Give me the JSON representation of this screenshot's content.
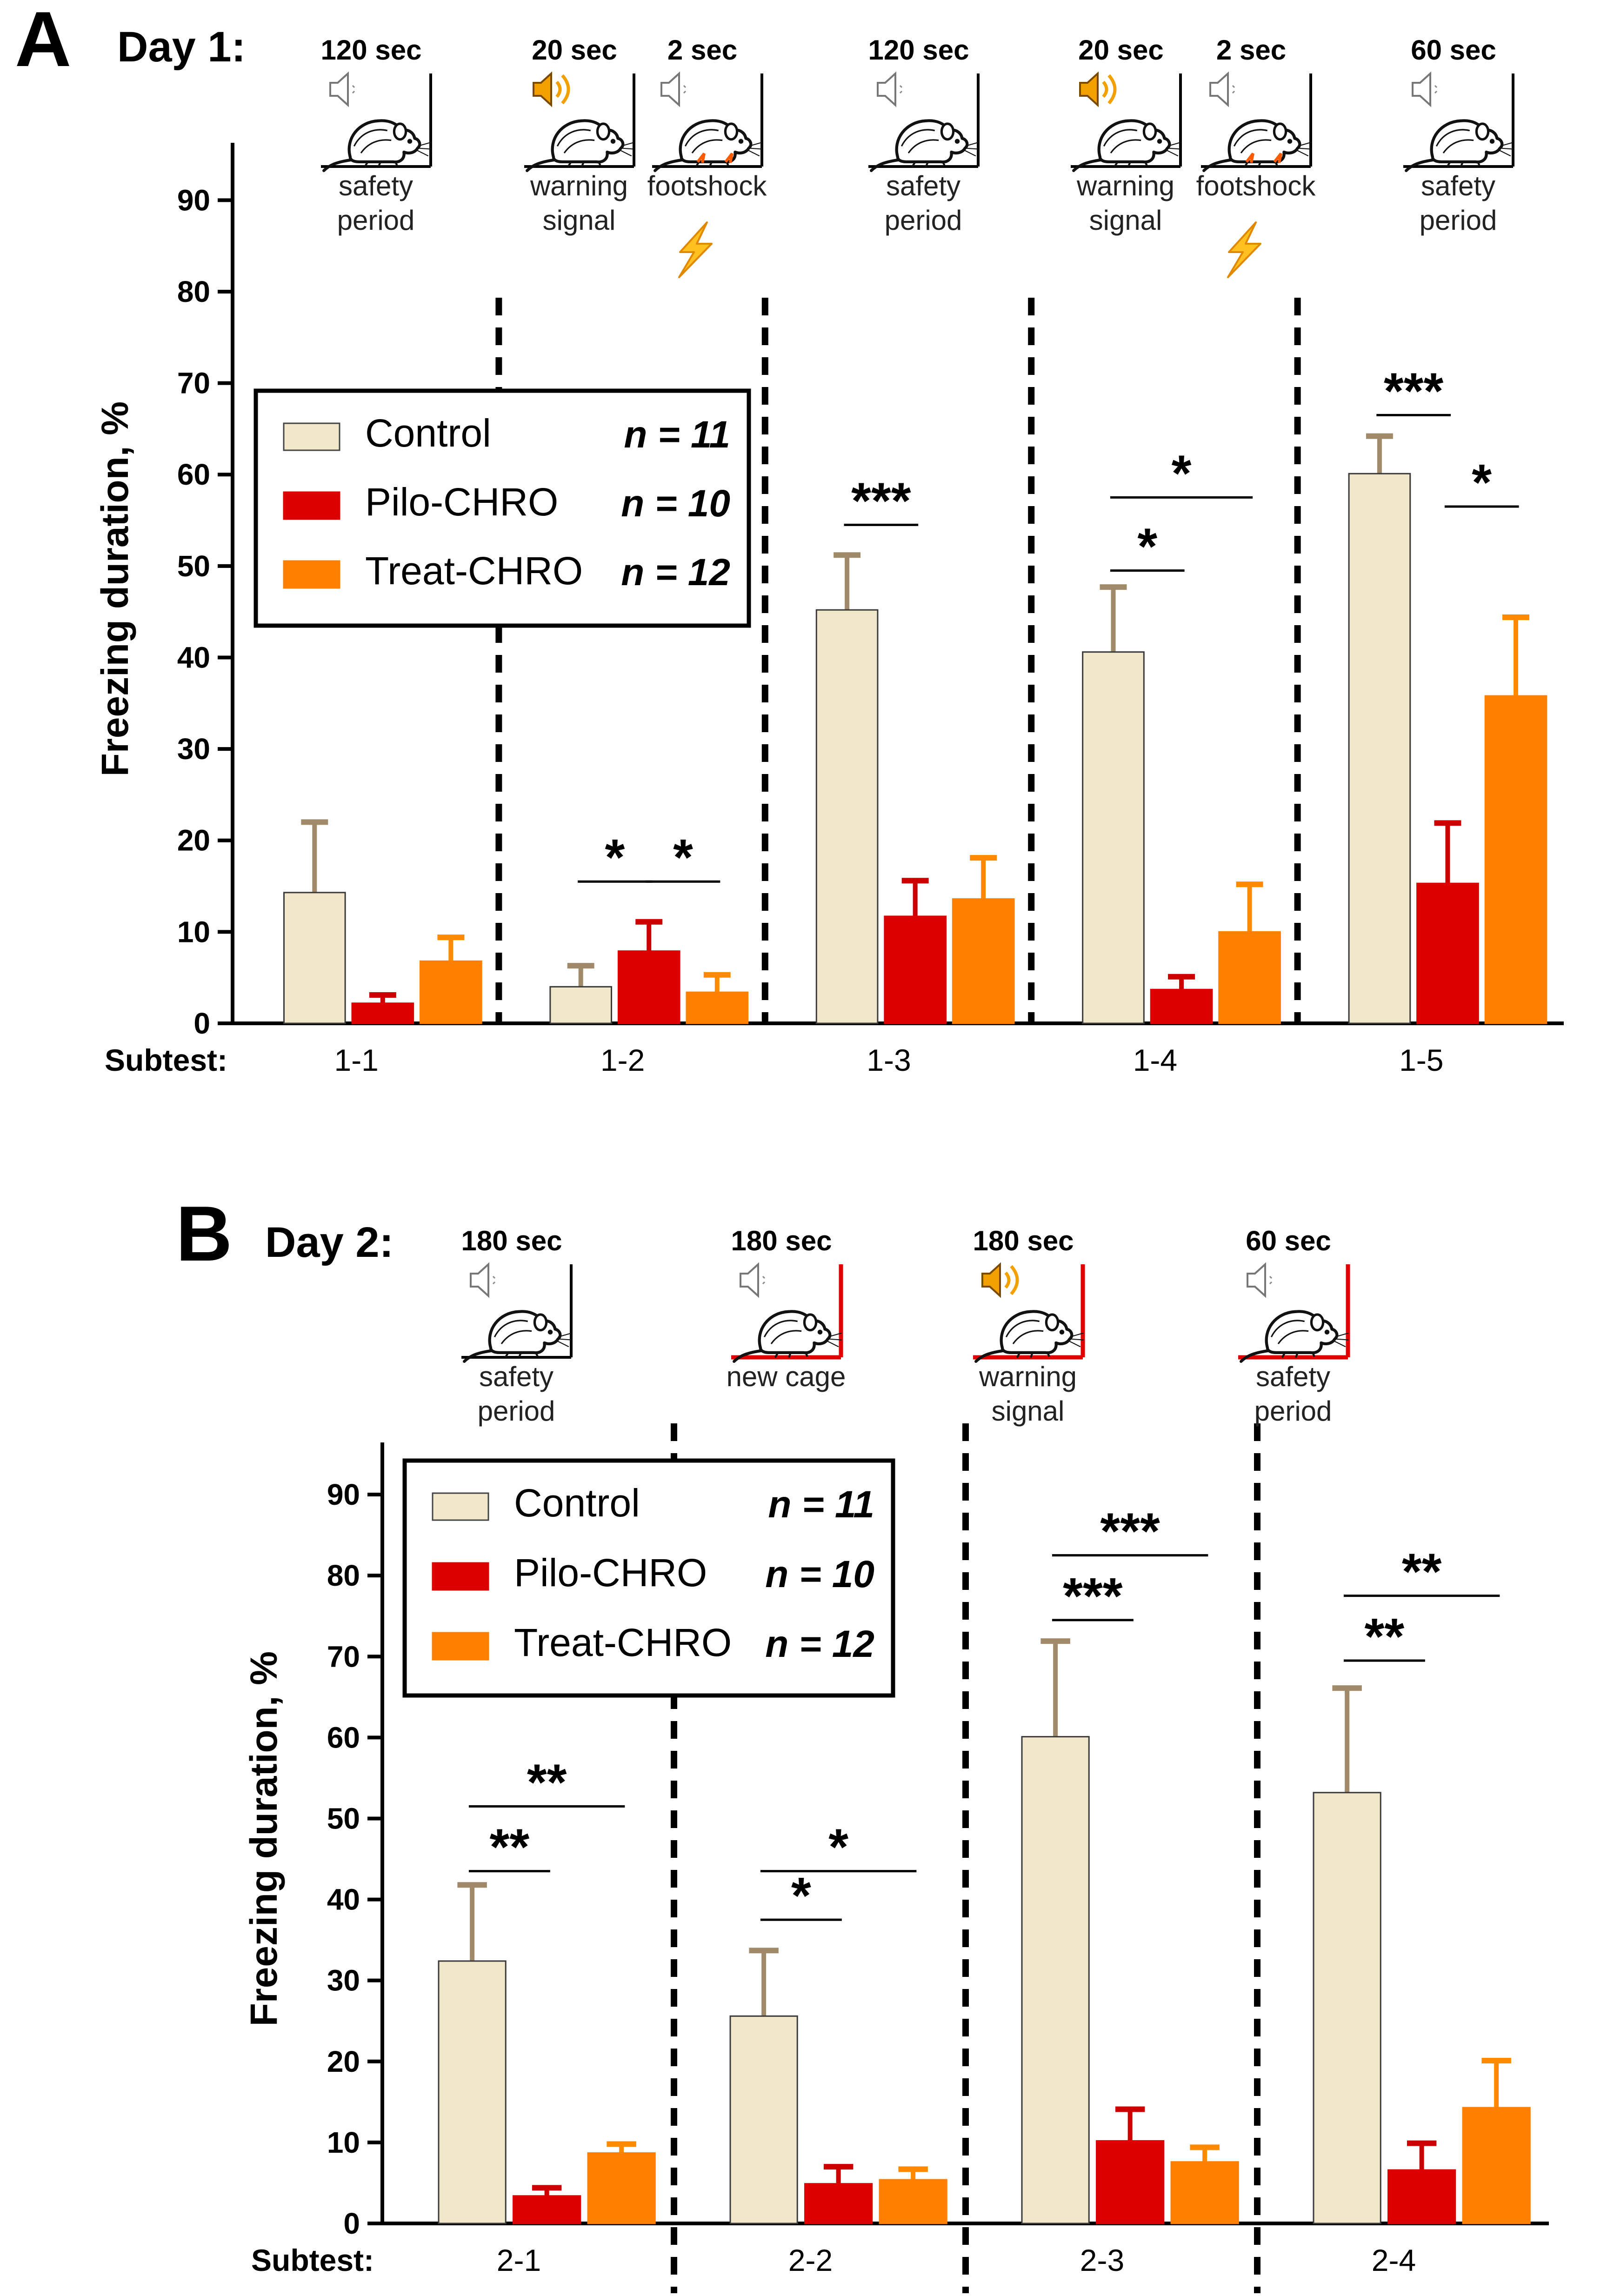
{
  "colors": {
    "control": "#F1E8CC",
    "pilo": "#DD0000",
    "treat": "#FF8000",
    "error_control": "#A08A6A",
    "error_pilo": "#CC0000",
    "error_treat": "#FF8A00",
    "speaker_on": "#F2A000",
    "cage_new": "#E00000",
    "bolt": "#FFC020"
  },
  "chart_data": [
    {
      "type": "bar",
      "panel_letter": "A",
      "day_label": "Day 1:",
      "ylabel": "Freezing duration, %",
      "ylim": [
        0,
        95
      ],
      "yticks": [
        "0",
        "10",
        "20",
        "30",
        "40",
        "50",
        "60",
        "70",
        "80",
        "90"
      ],
      "x_prefix": "Subtest:",
      "categories": [
        "1-1",
        "1-2",
        "1-3",
        "1-4",
        "1-5"
      ],
      "series": [
        {
          "name": "Control",
          "n": "n = 11",
          "values": [
            14.3,
            4.0,
            45.2,
            40.6,
            60.1
          ],
          "errors": [
            7.7,
            2.3,
            6.0,
            7.1,
            4.1
          ]
        },
        {
          "name": "Pilo-CHRO",
          "n": "n = 10",
          "values": [
            2.2,
            7.9,
            11.7,
            3.7,
            15.3
          ],
          "errors": [
            0.9,
            3.2,
            3.9,
            1.4,
            6.6
          ]
        },
        {
          "name": "Treat-CHRO",
          "n": "n = 12",
          "values": [
            6.8,
            3.4,
            13.6,
            10.0,
            35.8
          ],
          "errors": [
            2.6,
            1.9,
            4.5,
            5.2,
            8.6
          ]
        }
      ],
      "stages": [
        {
          "duration": "120 sec",
          "label": [
            "safety",
            "period"
          ],
          "sound": "speaker-muted",
          "cage": "normal"
        },
        {
          "duration": "20 sec",
          "label": [
            "warning",
            "signal"
          ],
          "sound": "speaker-on",
          "cage": "normal"
        },
        {
          "duration": "2 sec",
          "label": [
            "footshock"
          ],
          "sound": "speaker-muted",
          "cage": "normal",
          "shock": true
        },
        {
          "duration": "120 sec",
          "label": [
            "safety",
            "period"
          ],
          "sound": "speaker-muted",
          "cage": "normal"
        },
        {
          "duration": "20 sec",
          "label": [
            "warning",
            "signal"
          ],
          "sound": "speaker-on",
          "cage": "normal"
        },
        {
          "duration": "2 sec",
          "label": [
            "footshock"
          ],
          "sound": "speaker-muted",
          "cage": "normal",
          "shock": true
        },
        {
          "duration": "60 sec",
          "label": [
            "safety",
            "period"
          ],
          "sound": "speaker-muted",
          "cage": "normal"
        }
      ],
      "significance": [
        {
          "group": 1,
          "from": 0,
          "to": 1,
          "y": 15.5,
          "stars": "*"
        },
        {
          "group": 1,
          "from": 1,
          "to": 2,
          "y": 15.5,
          "stars": "*"
        },
        {
          "group": 2,
          "from": 0,
          "to": 1,
          "y": 54.5,
          "stars": "***"
        },
        {
          "group": 3,
          "from": 0,
          "to": 1,
          "y": 49.5,
          "stars": "*"
        },
        {
          "group": 3,
          "from": 0,
          "to": 2,
          "y": 57.5,
          "stars": "*"
        },
        {
          "group": 4,
          "from": 0,
          "to": 1,
          "y": 66.5,
          "stars": "***"
        },
        {
          "group": 4,
          "from": 1,
          "to": 2,
          "y": 56.5,
          "stars": "*"
        }
      ]
    },
    {
      "type": "bar",
      "panel_letter": "B",
      "day_label": "Day 2:",
      "ylabel": "Freezing duration, %",
      "ylim": [
        0,
        95
      ],
      "yticks": [
        "0",
        "10",
        "20",
        "30",
        "40",
        "50",
        "60",
        "70",
        "80",
        "90"
      ],
      "x_prefix": "Subtest:",
      "categories": [
        "2-1",
        "2-2",
        "2-3",
        "2-4"
      ],
      "series": [
        {
          "name": "Control",
          "n": "n = 11",
          "values": [
            32.4,
            25.6,
            60.1,
            53.2
          ],
          "errors": [
            9.4,
            8.1,
            11.8,
            12.9
          ]
        },
        {
          "name": "Pilo-CHRO",
          "n": "n = 10",
          "values": [
            3.4,
            4.9,
            10.2,
            6.6
          ],
          "errors": [
            1.0,
            2.1,
            3.9,
            3.3
          ]
        },
        {
          "name": "Treat-CHRO",
          "n": "n = 12",
          "values": [
            8.7,
            5.4,
            7.6,
            14.3
          ],
          "errors": [
            1.1,
            1.3,
            1.8,
            5.8
          ]
        }
      ],
      "stages": [
        {
          "duration": "180 sec",
          "label": [
            "safety",
            "period"
          ],
          "sound": "speaker-muted",
          "cage": "normal"
        },
        {
          "duration": "180 sec",
          "label": [
            "new cage"
          ],
          "sound": "speaker-muted",
          "cage": "new"
        },
        {
          "duration": "180 sec",
          "label": [
            "warning",
            "signal"
          ],
          "sound": "speaker-on",
          "cage": "new"
        },
        {
          "duration": "60 sec",
          "label": [
            "safety",
            "period"
          ],
          "sound": "speaker-muted",
          "cage": "new"
        }
      ],
      "significance": [
        {
          "group": 0,
          "from": 0,
          "to": 1,
          "y": 43.5,
          "stars": "**"
        },
        {
          "group": 0,
          "from": 0,
          "to": 2,
          "y": 51.5,
          "stars": "**"
        },
        {
          "group": 1,
          "from": 0,
          "to": 1,
          "y": 37.5,
          "stars": "*"
        },
        {
          "group": 1,
          "from": 0,
          "to": 2,
          "y": 43.5,
          "stars": "*"
        },
        {
          "group": 2,
          "from": 0,
          "to": 1,
          "y": 74.5,
          "stars": "***"
        },
        {
          "group": 2,
          "from": 0,
          "to": 2,
          "y": 82.5,
          "stars": "***"
        },
        {
          "group": 3,
          "from": 0,
          "to": 1,
          "y": 69.5,
          "stars": "**"
        },
        {
          "group": 3,
          "from": 0,
          "to": 2,
          "y": 77.5,
          "stars": "**"
        }
      ]
    }
  ]
}
